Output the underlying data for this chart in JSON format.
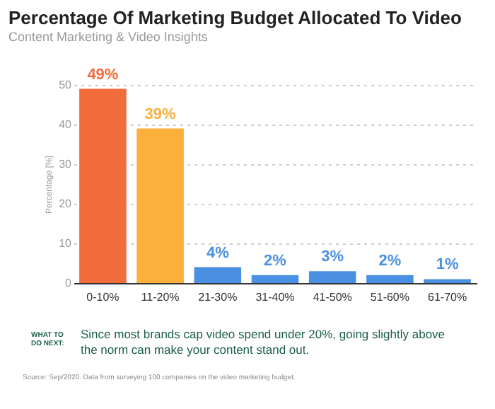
{
  "chart_data": {
    "type": "bar",
    "title": "Percentage Of Marketing Budget Allocated To Video",
    "subtitle": "Content Marketing & Video Insights",
    "ylabel": "Percentage [%]",
    "categories": [
      "0-10%",
      "11-20%",
      "21-30%",
      "31-40%",
      "41-50%",
      "51-60%",
      "61-70%"
    ],
    "values": [
      49,
      39,
      4,
      2,
      3,
      2,
      1
    ],
    "colors": [
      "#f26b3a",
      "#fbb03b",
      "#4a90e2",
      "#4a90e2",
      "#4a90e2",
      "#4a90e2",
      "#4a90e2"
    ],
    "value_labels": [
      "49%",
      "39%",
      "4%",
      "2%",
      "3%",
      "2%",
      "1%"
    ],
    "ylim": [
      0,
      50
    ],
    "yticks": [
      0,
      10,
      20,
      30,
      40,
      50
    ],
    "grid": "y",
    "annotations": [
      "WHAT TO DO NEXT:",
      "Since most brands cap video spend under 20%, going slightly above the norm can make your content stand out.",
      "Source: Sep/2020. Data from surveying 100 companies on the video marketing budget."
    ]
  }
}
